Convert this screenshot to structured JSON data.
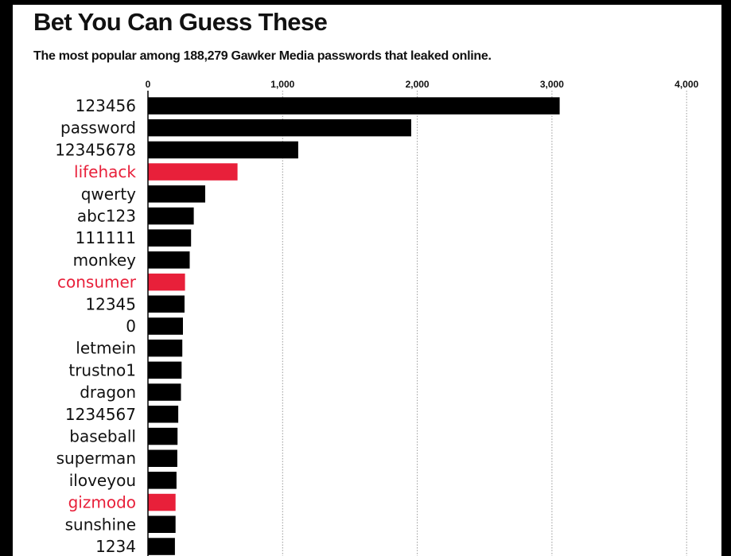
{
  "chart_data": {
    "type": "bar",
    "orientation": "horizontal",
    "title": "Bet You Can Guess These",
    "subtitle": "The most popular among 188,279 Gawker Media passwords that leaked online.",
    "xlim": [
      0,
      4000
    ],
    "ticks": [
      {
        "value": 0,
        "label": "0"
      },
      {
        "value": 1000,
        "label": "1,000"
      },
      {
        "value": 2000,
        "label": "2,000"
      },
      {
        "value": 3000,
        "label": "3,000"
      },
      {
        "value": 4000,
        "label": "4,000"
      }
    ],
    "tick_position": "top",
    "grid": true,
    "colors": {
      "default": "#000000",
      "highlight": "#e8203a",
      "label_default": "#111111"
    },
    "categories": [
      "123456",
      "password",
      "12345678",
      "lifehack",
      "qwerty",
      "abc123",
      "111111",
      "monkey",
      "consumer",
      "12345",
      "0",
      "letmein",
      "trustno1",
      "dragon",
      "1234567",
      "baseball",
      "superman",
      "iloveyou",
      "gizmodo",
      "sunshine",
      "1234"
    ],
    "values": [
      3057,
      1955,
      1116,
      665,
      425,
      340,
      320,
      310,
      275,
      272,
      260,
      255,
      250,
      245,
      225,
      220,
      218,
      212,
      205,
      205,
      200
    ],
    "highlighted": [
      "lifehack",
      "consumer",
      "gizmodo"
    ]
  }
}
